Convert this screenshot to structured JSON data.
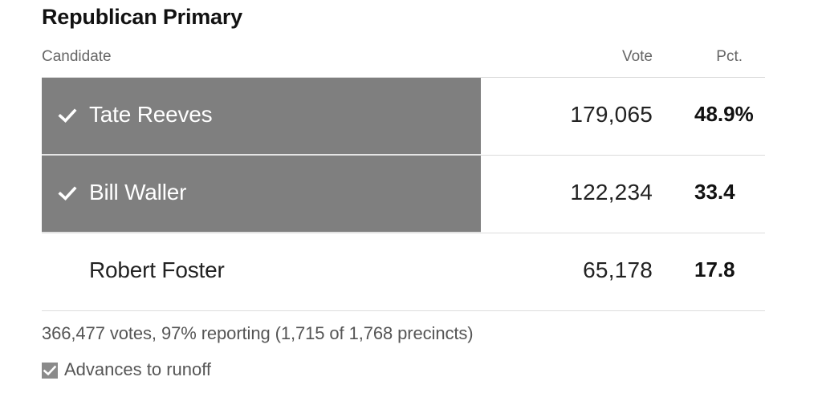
{
  "title": "Republican Primary",
  "columns": {
    "candidate": "Candidate",
    "vote": "Vote",
    "pct": "Pct."
  },
  "chart_data": {
    "type": "table",
    "title": "Republican Primary",
    "columns": [
      "Candidate",
      "Vote",
      "Pct."
    ],
    "rows": [
      {
        "candidate": "Tate Reeves",
        "vote": "179,065",
        "pct": "48.9%",
        "advances": true
      },
      {
        "candidate": "Bill Waller",
        "vote": "122,234",
        "pct": "33.4",
        "advances": true
      },
      {
        "candidate": "Robert Foster",
        "vote": "65,178",
        "pct": "17.8",
        "advances": false
      }
    ]
  },
  "footer": {
    "summary": "366,477 votes, 97% reporting (1,715 of 1,768 precincts)"
  },
  "legend": {
    "label": "Advances to runoff",
    "icon": "checkbox-checked-icon"
  },
  "colors": {
    "winner_fill": "#7f7f7f",
    "divider": "#dcdcdc",
    "text": "#121212",
    "muted": "#666666"
  }
}
